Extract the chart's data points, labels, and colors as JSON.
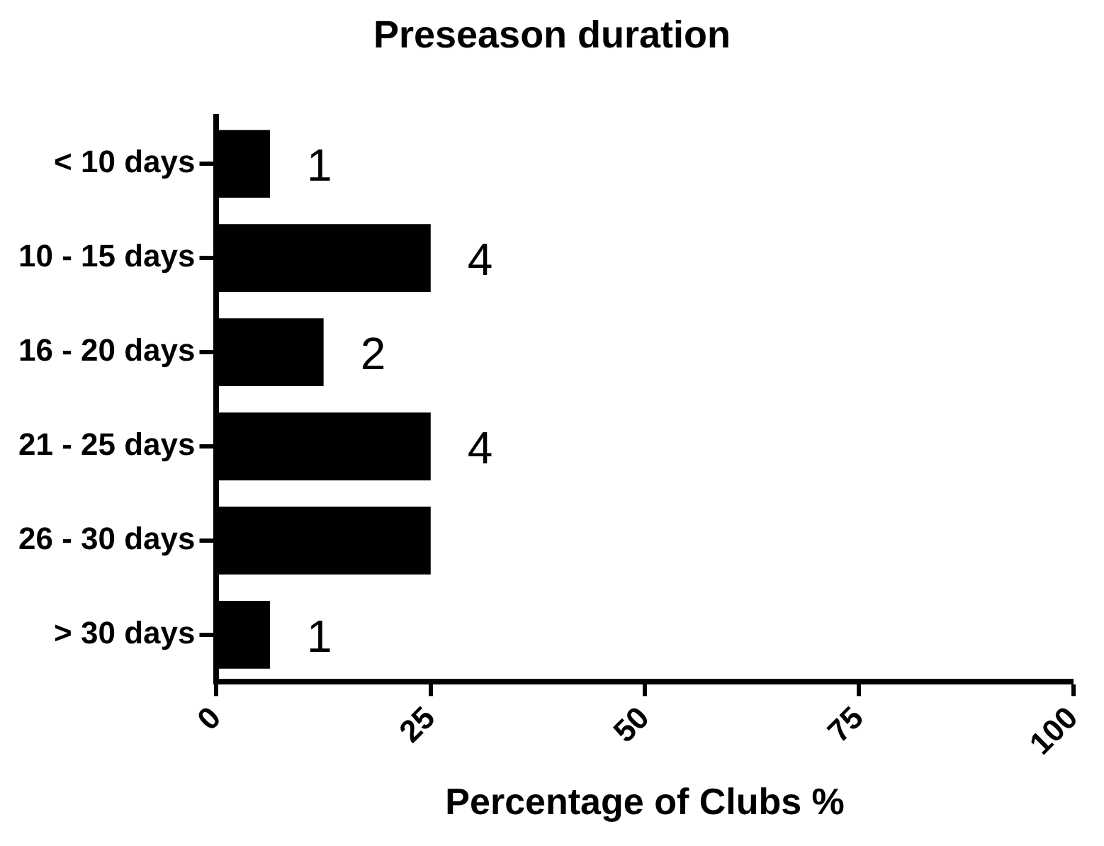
{
  "chart_data": {
    "type": "bar",
    "orientation": "horizontal",
    "title": "Preseason duration",
    "xlabel": "Percentage of Clubs %",
    "categories": [
      "< 10 days",
      "10 - 15 days",
      "16 - 20 days",
      "21 - 25 days",
      "26 - 30 days",
      "> 30 days"
    ],
    "values": [
      6.25,
      25,
      12.5,
      25,
      25,
      6.25
    ],
    "color": "#000000",
    "annotations": [
      {
        "text": "1",
        "x": 6.25,
        "y": "< 10 days"
      },
      {
        "text": "4",
        "x": 25,
        "y": "10 - 15 days"
      },
      {
        "text": "2",
        "x": 12.5,
        "y": "16 - 20 days"
      },
      {
        "text": "4",
        "x": 25,
        "y": "21 - 25 days"
      },
      {
        "text": "1",
        "x": 6.25,
        "y": "> 30 days"
      }
    ],
    "xlim": [
      0,
      100
    ],
    "xticks": [
      0,
      25,
      50,
      75,
      100
    ],
    "legend": false
  }
}
